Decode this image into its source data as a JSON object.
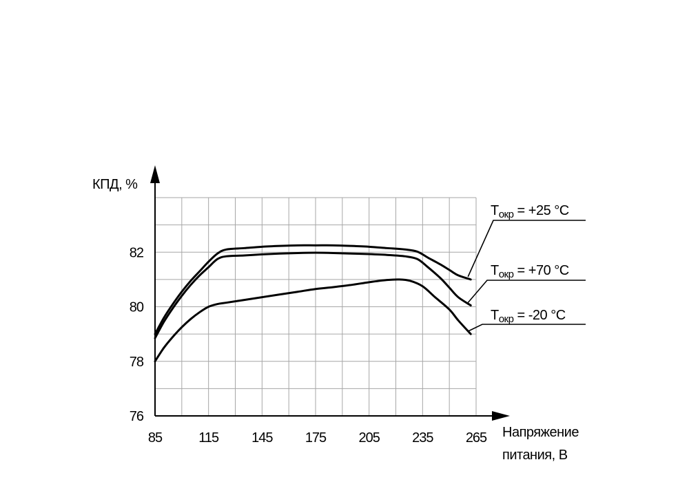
{
  "chart_data": {
    "type": "line",
    "ylabel": "КПД, %",
    "xlabel_line1": "Напряжение",
    "xlabel_line2": "питания, В",
    "x_ticks": [
      85,
      115,
      145,
      175,
      205,
      235,
      265
    ],
    "y_ticks": [
      76,
      78,
      80,
      82
    ],
    "xlim": [
      85,
      265
    ],
    "ylim": [
      76,
      84
    ],
    "grid": true,
    "series": [
      {
        "name": "Tокр = +25 °C",
        "name_main": "T",
        "name_sub": "окр",
        "name_rest": " = +25 °C",
        "x": [
          85,
          90,
          95,
          100,
          105,
          110,
          115,
          120,
          125,
          135,
          145,
          155,
          165,
          175,
          185,
          195,
          205,
          215,
          225,
          232,
          238,
          245,
          250,
          255,
          262
        ],
        "y": [
          79.0,
          79.6,
          80.1,
          80.55,
          80.95,
          81.3,
          81.65,
          81.95,
          82.1,
          82.15,
          82.2,
          82.23,
          82.25,
          82.25,
          82.25,
          82.23,
          82.2,
          82.15,
          82.1,
          82.02,
          81.8,
          81.55,
          81.35,
          81.15,
          81.0
        ]
      },
      {
        "name": "Tокр = +70 °C",
        "name_main": "T",
        "name_sub": "окр",
        "name_rest": " = +70 °C",
        "x": [
          85,
          90,
          95,
          100,
          105,
          110,
          115,
          120,
          125,
          135,
          145,
          155,
          165,
          175,
          185,
          195,
          205,
          215,
          225,
          232,
          238,
          245,
          250,
          255,
          262
        ],
        "y": [
          78.85,
          79.45,
          79.95,
          80.4,
          80.8,
          81.15,
          81.45,
          81.75,
          81.85,
          81.88,
          81.92,
          81.95,
          81.97,
          81.98,
          81.97,
          81.95,
          81.93,
          81.9,
          81.85,
          81.75,
          81.45,
          81.05,
          80.7,
          80.35,
          80.05
        ]
      },
      {
        "name": "Tокр = -20 °C",
        "name_main": "T",
        "name_sub": "окр",
        "name_rest": " = -20 °C",
        "x": [
          85,
          90,
          95,
          100,
          105,
          110,
          115,
          120,
          125,
          135,
          145,
          155,
          165,
          175,
          185,
          195,
          205,
          215,
          222,
          228,
          235,
          242,
          250,
          255,
          262
        ],
        "y": [
          78.0,
          78.5,
          78.9,
          79.25,
          79.55,
          79.8,
          80.0,
          80.1,
          80.15,
          80.25,
          80.35,
          80.45,
          80.55,
          80.65,
          80.72,
          80.8,
          80.9,
          80.98,
          81.0,
          80.95,
          80.75,
          80.35,
          79.9,
          79.5,
          79.0
        ]
      }
    ]
  }
}
